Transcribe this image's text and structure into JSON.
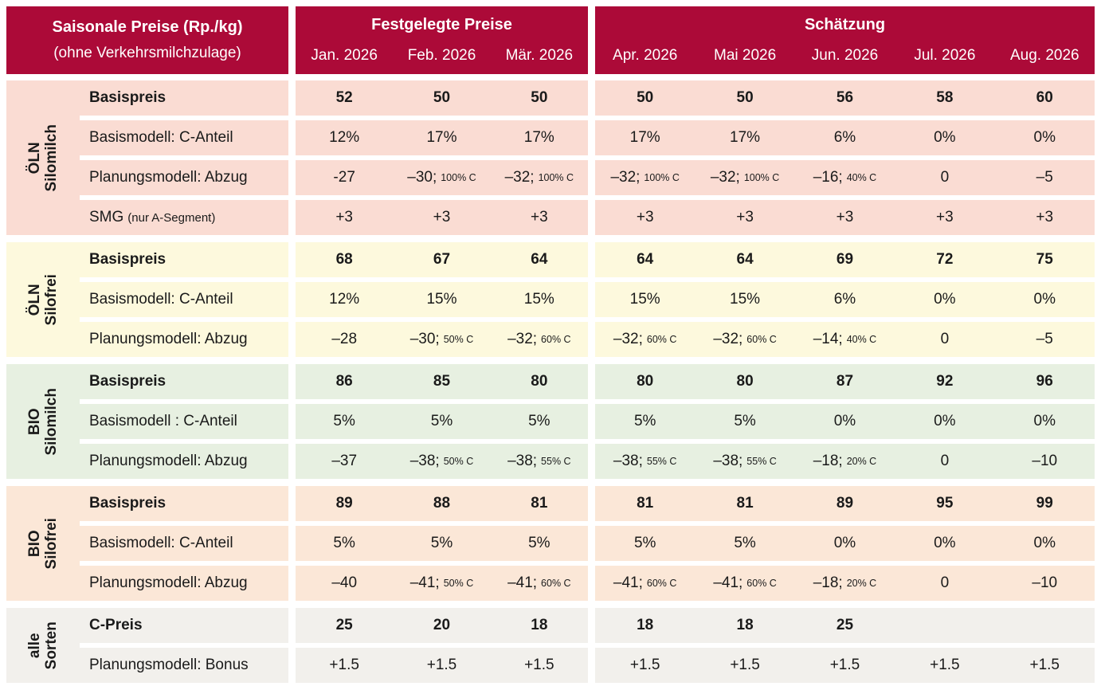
{
  "header": {
    "left_title": "Saisonale Preise (Rp./kg)",
    "left_subtitle": "(ohne Verkehrsmilchzulage)",
    "blocks": [
      {
        "label": "Festgelegte Preise",
        "months": [
          "Jan. 2026",
          "Feb. 2026",
          "Mär. 2026"
        ]
      },
      {
        "label": "Schätzung",
        "months": [
          "Apr. 2026",
          "Mai 2026",
          "Jun. 2026",
          "Jul. 2026",
          "Aug. 2026"
        ]
      }
    ]
  },
  "colors": {
    "header_bg": "#AC0A38",
    "header_text": "#FFFFFF",
    "body_text": "#1A1A1A",
    "oln_silomilch_bg": "#FADCD3",
    "oln_silofrei_bg": "#FDF9DD",
    "bio_silomilch_bg": "#E7F0E1",
    "bio_silofrei_bg": "#FBE7D7",
    "alle_sorten_bg": "#F2F0EC"
  },
  "groups": [
    {
      "id": "oln-silomilch",
      "label_lines": [
        "ÖLN",
        "Silomilch"
      ],
      "bg": "#FADCD3",
      "rows": [
        {
          "label": "Basispreis",
          "bold": true,
          "cells": [
            "52",
            "50",
            "50",
            "50",
            "50",
            "56",
            "58",
            "60"
          ]
        },
        {
          "label": "Basismodell: C-Anteil",
          "cells": [
            "12%",
            "17%",
            "17%",
            "17%",
            "17%",
            "6%",
            "0%",
            "0%"
          ]
        },
        {
          "label": "Planungsmodell: Abzug",
          "cells": [
            "-27",
            {
              "main": "–30;",
              "small": "100% C"
            },
            {
              "main": "–32;",
              "small": "100% C"
            },
            {
              "main": "–32;",
              "small": "100% C"
            },
            {
              "main": "–32;",
              "small": "100% C"
            },
            {
              "main": "–16;",
              "small": "40% C"
            },
            "0",
            "–5"
          ]
        },
        {
          "label": {
            "main": "SMG",
            "small": "(nur A-Segment)"
          },
          "cells": [
            "+3",
            "+3",
            "+3",
            "+3",
            "+3",
            "+3",
            "+3",
            "+3"
          ]
        }
      ]
    },
    {
      "id": "oln-silofrei",
      "label_lines": [
        "ÖLN",
        "Silofrei"
      ],
      "bg": "#FDF9DD",
      "rows": [
        {
          "label": "Basispreis",
          "bold": true,
          "cells": [
            "68",
            "67",
            "64",
            "64",
            "64",
            "69",
            "72",
            "75"
          ]
        },
        {
          "label": "Basismodell: C-Anteil",
          "cells": [
            "12%",
            "15%",
            "15%",
            "15%",
            "15%",
            "6%",
            "0%",
            "0%"
          ]
        },
        {
          "label": "Planungsmodell: Abzug",
          "cells": [
            "–28",
            {
              "main": "–30;",
              "small": "50% C"
            },
            {
              "main": "–32;",
              "small": "60% C"
            },
            {
              "main": "–32;",
              "small": "60% C"
            },
            {
              "main": "–32;",
              "small": "60% C"
            },
            {
              "main": "–14;",
              "small": "40% C"
            },
            "0",
            "–5"
          ]
        }
      ]
    },
    {
      "id": "bio-silomilch",
      "label_lines": [
        "BIO",
        "Silomilch"
      ],
      "bg": "#E7F0E1",
      "rows": [
        {
          "label": "Basispreis",
          "bold": true,
          "cells": [
            "86",
            "85",
            "80",
            "80",
            "80",
            "87",
            "92",
            "96"
          ]
        },
        {
          "label": "Basismodell : C-Anteil",
          "cells": [
            "5%",
            "5%",
            "5%",
            "5%",
            "5%",
            "0%",
            "0%",
            "0%"
          ]
        },
        {
          "label": "Planungsmodell: Abzug",
          "cells": [
            "–37",
            {
              "main": "–38;",
              "small": "50% C"
            },
            {
              "main": "–38;",
              "small": "55% C"
            },
            {
              "main": "–38;",
              "small": "55% C"
            },
            {
              "main": "–38;",
              "small": "55% C"
            },
            {
              "main": "–18;",
              "small": "20% C"
            },
            "0",
            "–10"
          ]
        }
      ]
    },
    {
      "id": "bio-silofrei",
      "label_lines": [
        "BIO",
        "Silofrei"
      ],
      "bg": "#FBE7D7",
      "rows": [
        {
          "label": "Basispreis",
          "bold": true,
          "cells": [
            "89",
            "88",
            "81",
            "81",
            "81",
            "89",
            "95",
            "99"
          ]
        },
        {
          "label": "Basismodell: C-Anteil",
          "cells": [
            "5%",
            "5%",
            "5%",
            "5%",
            "5%",
            "0%",
            "0%",
            "0%"
          ]
        },
        {
          "label": "Planungsmodell: Abzug",
          "cells": [
            "–40",
            {
              "main": "–41;",
              "small": "50% C"
            },
            {
              "main": "–41;",
              "small": "60% C"
            },
            {
              "main": "–41;",
              "small": "60% C"
            },
            {
              "main": "–41;",
              "small": "60% C"
            },
            {
              "main": "–18;",
              "small": "20% C"
            },
            "0",
            "–10"
          ]
        }
      ]
    },
    {
      "id": "alle-sorten",
      "label_lines": [
        "alle",
        "Sorten"
      ],
      "bg": "#F2F0EC",
      "rows": [
        {
          "label": "C-Preis",
          "bold": true,
          "cells": [
            "25",
            "20",
            "18",
            "18",
            "18",
            "25",
            "",
            ""
          ]
        },
        {
          "label": "Planungsmodell: Bonus",
          "cells": [
            "+1.5",
            "+1.5",
            "+1.5",
            "+1.5",
            "+1.5",
            "+1.5",
            "+1.5",
            "+1.5"
          ]
        }
      ]
    }
  ]
}
